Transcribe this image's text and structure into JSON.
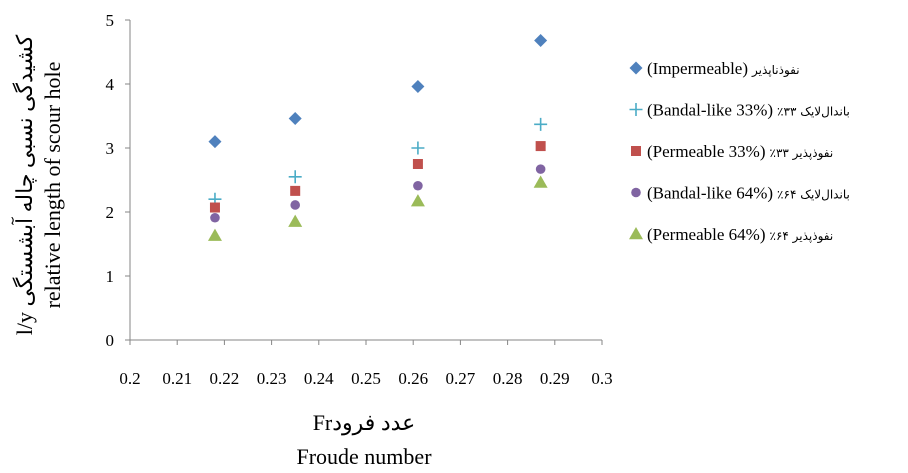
{
  "chart_data": {
    "type": "scatter",
    "xlabel_fa": "عدد فرودFr",
    "xlabel": "Froude number",
    "ylabel_fa": "کشیدگی نسبی چاله آبشستگی l/y",
    "ylabel": "relative length of scour hole",
    "xlim": [
      0.2,
      0.3
    ],
    "ylim": [
      0,
      5
    ],
    "x_ticks": [
      "0.2",
      "0.21",
      "0.22",
      "0.23",
      "0.24",
      "0.25",
      "0.26",
      "0.27",
      "0.28",
      "0.29",
      "0.3"
    ],
    "y_ticks": [
      "0",
      "1",
      "2",
      "3",
      "4",
      "5"
    ],
    "grid": false,
    "legend_position": "right",
    "series": [
      {
        "name": "Impermeable",
        "legend_fa": "نفوذناپذیر",
        "legend_en": "(Impermeable)",
        "marker": "diamond",
        "color": "#4F81BD",
        "x": [
          0.218,
          0.235,
          0.261,
          0.287
        ],
        "y": [
          3.1,
          3.46,
          3.96,
          4.68
        ]
      },
      {
        "name": "Bandal-like 33%",
        "legend_fa": "باندال‌لایک ۳۳٪",
        "legend_en": "(Bandal-like 33%)",
        "marker": "plus",
        "color": "#4BACC6",
        "x": [
          0.218,
          0.235,
          0.261,
          0.287
        ],
        "y": [
          2.2,
          2.55,
          3.0,
          3.37
        ]
      },
      {
        "name": "Permeable 33%",
        "legend_fa": "نفوذپذیر ۳۳٪",
        "legend_en": "(Permeable 33%)",
        "marker": "square",
        "color": "#C0504D",
        "x": [
          0.218,
          0.235,
          0.261,
          0.287
        ],
        "y": [
          2.07,
          2.33,
          2.75,
          3.03
        ]
      },
      {
        "name": "Bandal-like 64%",
        "legend_fa": "باندال‌لایک ۶۴٪",
        "legend_en": "(Bandal-like 64%)",
        "marker": "circle",
        "color": "#8064A2",
        "x": [
          0.218,
          0.235,
          0.261,
          0.287
        ],
        "y": [
          1.91,
          2.11,
          2.41,
          2.67
        ]
      },
      {
        "name": "Permeable 64%",
        "legend_fa": "نفوذپذیر ۶۴٪",
        "legend_en": "(Permeable 64%)",
        "marker": "triangle",
        "color": "#9BBB59",
        "x": [
          0.218,
          0.235,
          0.261,
          0.287
        ],
        "y": [
          1.63,
          1.85,
          2.17,
          2.46
        ]
      }
    ]
  }
}
